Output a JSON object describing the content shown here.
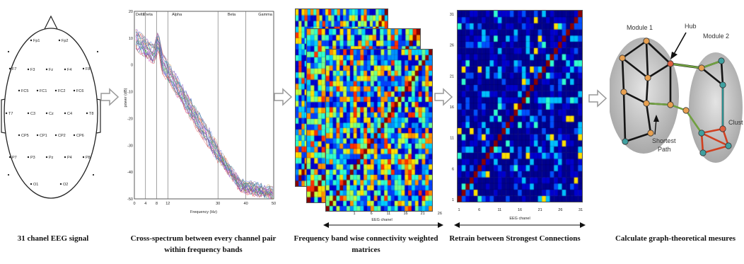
{
  "stages": [
    {
      "id": "eeg",
      "caption": "31 chanel EEG signal"
    },
    {
      "id": "cross",
      "caption_line1": "Cross-spectrum between every channel pair",
      "caption_line2": "within frequency bands"
    },
    {
      "id": "matrices",
      "caption_line1": "Frequency band wise connectivity weighted",
      "caption_line2": "matrices"
    },
    {
      "id": "retrain",
      "caption": "Retrain between Strongest Connections"
    },
    {
      "id": "graph",
      "caption": "Calculate graph-theoretical mesures"
    }
  ],
  "electrodes": [
    "Fp1",
    "Fp2",
    "F7",
    "F3",
    "Fz",
    "F4",
    "F8",
    "FC5",
    "FC1",
    "FC2",
    "FC6",
    "T7",
    "C3",
    "Cz",
    "C4",
    "T8",
    "CP5",
    "CP1",
    "CP2",
    "CP6",
    "P7",
    "P3",
    "Pz",
    "P4",
    "P8",
    "O1",
    "O2"
  ],
  "spectrum": {
    "bands": [
      "Delta",
      "Theta",
      "Alpha",
      "Beta",
      "Gamma"
    ],
    "y_ticks": [
      "20",
      "10",
      "0",
      "-10",
      "-20",
      "-30",
      "-40",
      "-50"
    ],
    "x_ticks": [
      "0",
      "4",
      "8",
      "12",
      "30",
      "40",
      "50"
    ],
    "xlabel": "Frequency (Hz)",
    "ylabel": "power (dB)"
  },
  "matrix": {
    "xlabel": "EEG chanel",
    "ticks": [
      "1",
      "6",
      "11",
      "16",
      "21",
      "26",
      "31"
    ]
  },
  "graph": {
    "module1": "Module 1",
    "module2": "Module 2",
    "hub": "Hub",
    "shortest_path_line1": "Shortest",
    "shortest_path_line2": "Path",
    "cluster": "Clust"
  },
  "colors": {
    "arrow": "#b8b8b8",
    "module_fill": "#c8c8c8",
    "node_orange": "#e8a050",
    "node_teal": "#40a0a0",
    "node_red": "#e06040",
    "path_green": "#70a040",
    "cluster_red": "#d04020"
  }
}
